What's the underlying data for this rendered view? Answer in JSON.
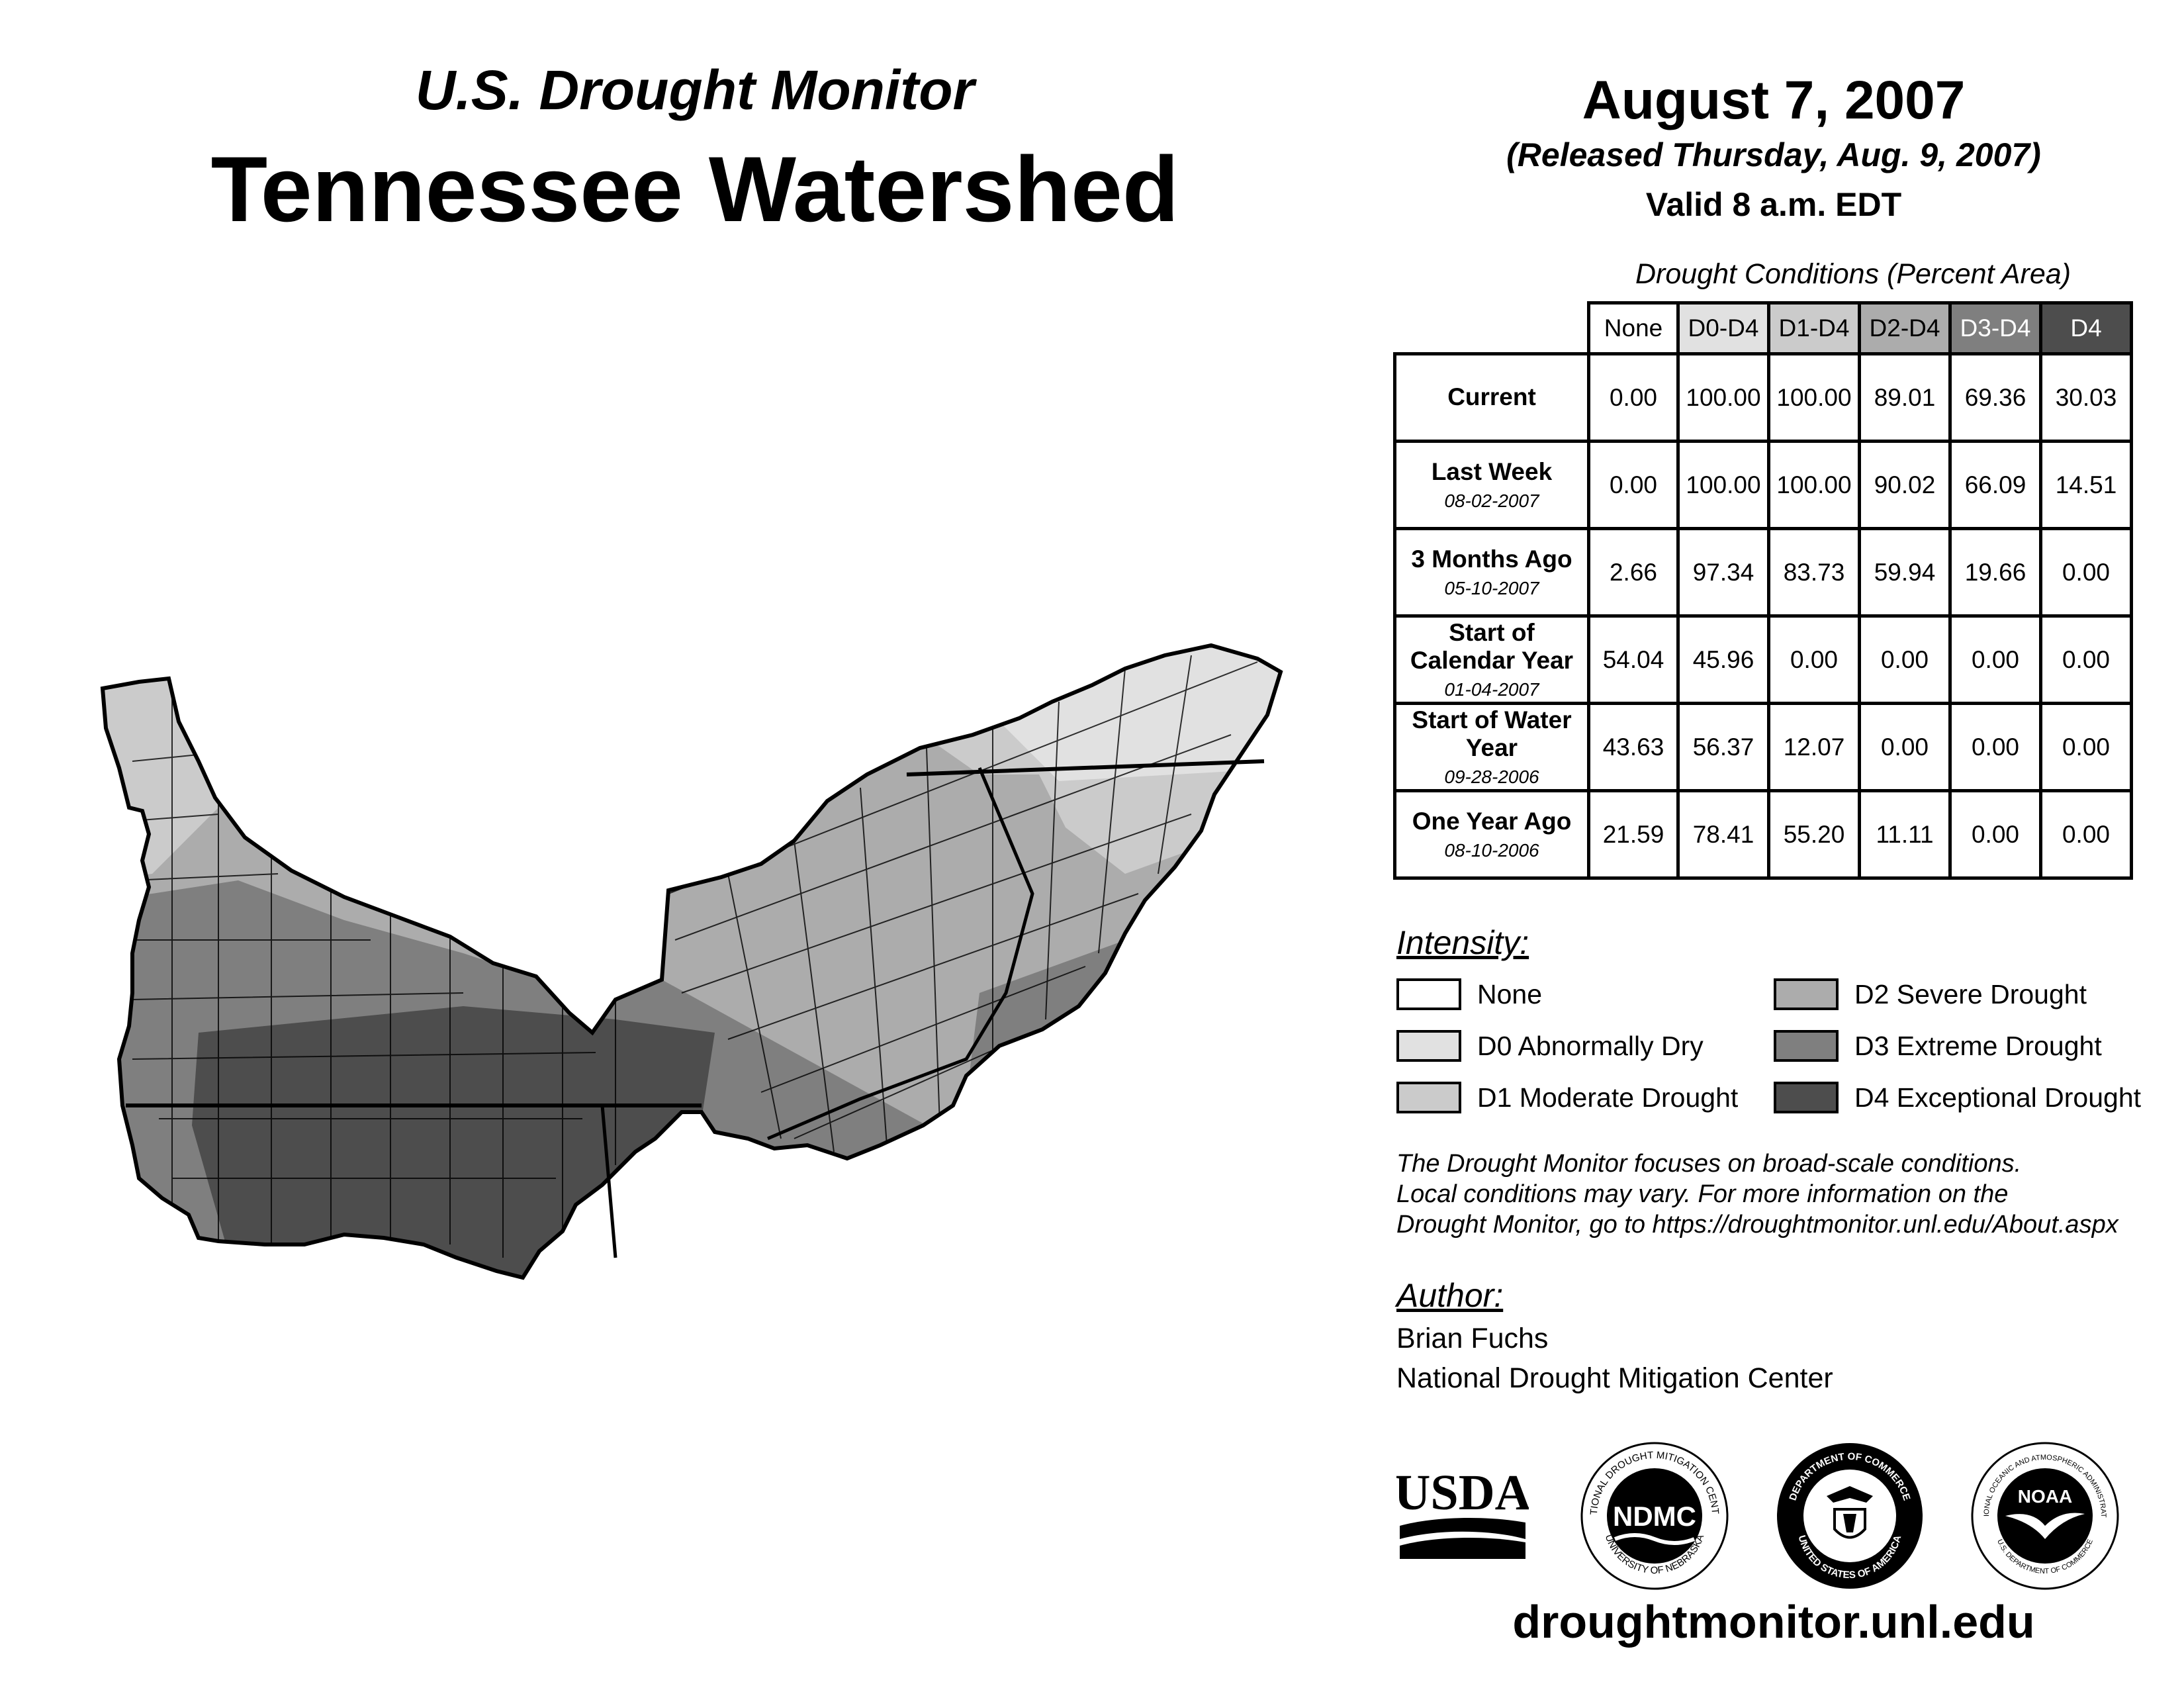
{
  "header": {
    "subtitle": "U.S. Drought Monitor",
    "title": "Tennessee Watershed",
    "date": "August 7, 2007",
    "released": "(Released Thursday, Aug. 9, 2007)",
    "valid": "Valid 8 a.m. EDT"
  },
  "table": {
    "caption": "Drought Conditions (Percent Area)",
    "columns": [
      "None",
      "D0-D4",
      "D1-D4",
      "D2-D4",
      "D3-D4",
      "D4"
    ],
    "column_colors": [
      "#ffffff",
      "#e1e1e1",
      "#cbcbcb",
      "#acacac",
      "#7f7f7f",
      "#4d4d4d"
    ],
    "rows": [
      {
        "label": "Current",
        "sublabel": "",
        "values": [
          "0.00",
          "100.00",
          "100.00",
          "89.01",
          "69.36",
          "30.03"
        ]
      },
      {
        "label": "Last Week",
        "sublabel": "08-02-2007",
        "values": [
          "0.00",
          "100.00",
          "100.00",
          "90.02",
          "66.09",
          "14.51"
        ]
      },
      {
        "label": "3 Months Ago",
        "sublabel": "05-10-2007",
        "values": [
          "2.66",
          "97.34",
          "83.73",
          "59.94",
          "19.66",
          "0.00"
        ]
      },
      {
        "label": "Start of Calendar Year",
        "sublabel": "01-04-2007",
        "values": [
          "54.04",
          "45.96",
          "0.00",
          "0.00",
          "0.00",
          "0.00"
        ]
      },
      {
        "label": "Start of Water Year",
        "sublabel": "09-28-2006",
        "values": [
          "43.63",
          "56.37",
          "12.07",
          "0.00",
          "0.00",
          "0.00"
        ]
      },
      {
        "label": "One Year Ago",
        "sublabel": "08-10-2006",
        "values": [
          "21.59",
          "78.41",
          "55.20",
          "11.11",
          "0.00",
          "0.00"
        ]
      }
    ]
  },
  "legend": {
    "heading": "Intensity:",
    "items": [
      {
        "label": "None",
        "color": "#ffffff"
      },
      {
        "label": "D0 Abnormally Dry",
        "color": "#e1e1e1"
      },
      {
        "label": "D1 Moderate Drought",
        "color": "#cbcbcb"
      },
      {
        "label": "D2 Severe Drought",
        "color": "#acacac"
      },
      {
        "label": "D3 Extreme Drought",
        "color": "#7f7f7f"
      },
      {
        "label": "D4 Exceptional Drought",
        "color": "#4d4d4d"
      }
    ]
  },
  "note": {
    "line1": "The Drought Monitor focuses on broad-scale conditions.",
    "line2": "Local conditions may vary. For more information on the",
    "line3": "Drought Monitor, go to https://droughtmonitor.unl.edu/About.aspx"
  },
  "author": {
    "heading": "Author:",
    "name": "Brian Fuchs",
    "org": "National Drought Mitigation Center"
  },
  "logos": {
    "usda": "USDA",
    "ndmc": "NDMC",
    "ndmc_ring_top": "NATIONAL DROUGHT MITIGATION CENTER",
    "ndmc_ring_bottom": "UNIVERSITY OF NEBRASKA",
    "doc_ring_top": "DEPARTMENT OF COMMERCE",
    "doc_ring_bottom": "UNITED STATES OF AMERICA",
    "noaa": "NOAA",
    "noaa_ring_top": "NATIONAL OCEANIC AND ATMOSPHERIC ADMINISTRATION",
    "noaa_ring_bottom": "U.S. DEPARTMENT OF COMMERCE"
  },
  "url": "droughtmonitor.unl.edu",
  "map": {
    "name": "Tennessee Watershed drought map"
  }
}
